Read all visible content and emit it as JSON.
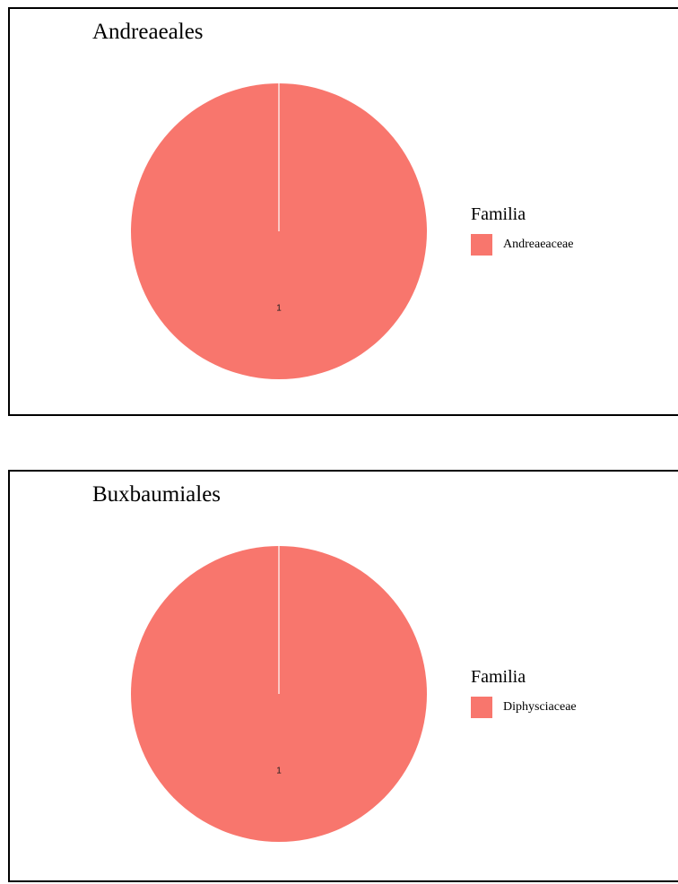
{
  "colors": {
    "slice": "#F8766D",
    "border": "#000000",
    "background": "#ffffff"
  },
  "chart_data": [
    {
      "type": "pie",
      "title": "Andreaeales",
      "legend_title": "Familia",
      "legend_position": "right",
      "categories": [
        "Andreaeaceae"
      ],
      "values": [
        1
      ],
      "labels": [
        "1"
      ]
    },
    {
      "type": "pie",
      "title": "Buxbaumiales",
      "legend_title": "Familia",
      "legend_position": "right",
      "categories": [
        "Diphysciaceae"
      ],
      "values": [
        1
      ],
      "labels": [
        "1"
      ]
    }
  ]
}
